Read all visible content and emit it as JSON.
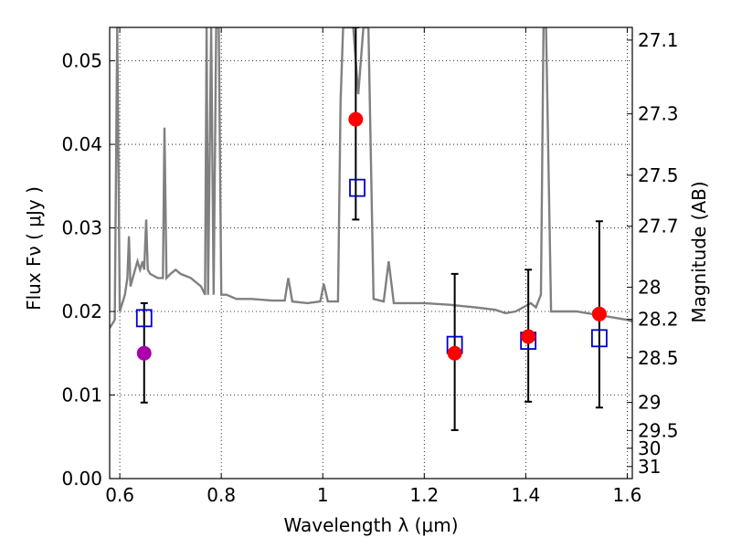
{
  "chart_data": {
    "type": "scatter",
    "xlabel": "Wavelength  λ (μm)",
    "ylabel": "Flux  Fν  ( μJy )",
    "ylabel_right": "Magnitude (AB)",
    "xlim": [
      0.58,
      1.61
    ],
    "ylim": [
      0.0,
      0.054
    ],
    "grid": true,
    "x_ticks": [
      0.6,
      0.8,
      1.0,
      1.2,
      1.4,
      1.6
    ],
    "x_tick_labels": [
      "0.6",
      "0.8",
      "1",
      "1.2",
      "1.4",
      "1.6"
    ],
    "y_ticks": [
      0.0,
      0.01,
      0.02,
      0.03,
      0.04,
      0.05
    ],
    "y_tick_labels": [
      "0.00",
      "0.01",
      "0.02",
      "0.03",
      "0.04",
      "0.05"
    ],
    "right_tick_labels": [
      "27.1",
      "27.3",
      "27.5",
      "27.7",
      "28",
      "28.2",
      "28.5",
      "29",
      "29.5",
      "30",
      "31"
    ],
    "colors": {
      "spectrum": "#808080",
      "observed": "#ff0000",
      "observed_upper": "#aa00aa",
      "model": "#0000cc",
      "errorbar": "#000000"
    },
    "spectrum": [
      [
        0.58,
        0.018
      ],
      [
        0.59,
        0.019
      ],
      [
        0.595,
        0.054
      ],
      [
        0.6,
        0.02
      ],
      [
        0.61,
        0.022
      ],
      [
        0.615,
        0.024
      ],
      [
        0.618,
        0.029
      ],
      [
        0.621,
        0.023
      ],
      [
        0.63,
        0.025
      ],
      [
        0.635,
        0.026
      ],
      [
        0.64,
        0.025
      ],
      [
        0.645,
        0.026
      ],
      [
        0.648,
        0.025
      ],
      [
        0.652,
        0.031
      ],
      [
        0.655,
        0.025
      ],
      [
        0.66,
        0.0245
      ],
      [
        0.675,
        0.024
      ],
      [
        0.685,
        0.024
      ],
      [
        0.688,
        0.042
      ],
      [
        0.692,
        0.024
      ],
      [
        0.7,
        0.0245
      ],
      [
        0.71,
        0.025
      ],
      [
        0.72,
        0.0245
      ],
      [
        0.74,
        0.024
      ],
      [
        0.76,
        0.023
      ],
      [
        0.768,
        0.022
      ],
      [
        0.771,
        0.054
      ],
      [
        0.774,
        0.022
      ],
      [
        0.78,
        0.054
      ],
      [
        0.785,
        0.022
      ],
      [
        0.79,
        0.054
      ],
      [
        0.795,
        0.054
      ],
      [
        0.8,
        0.022
      ],
      [
        0.81,
        0.022
      ],
      [
        0.83,
        0.0215
      ],
      [
        0.86,
        0.0215
      ],
      [
        0.9,
        0.0213
      ],
      [
        0.925,
        0.0213
      ],
      [
        0.932,
        0.024
      ],
      [
        0.94,
        0.0212
      ],
      [
        0.97,
        0.021
      ],
      [
        0.995,
        0.0212
      ],
      [
        1.002,
        0.0233
      ],
      [
        1.01,
        0.0212
      ],
      [
        1.03,
        0.0212
      ],
      [
        1.035,
        0.045
      ],
      [
        1.04,
        0.054
      ],
      [
        1.06,
        0.054
      ],
      [
        1.07,
        0.046
      ],
      [
        1.08,
        0.054
      ],
      [
        1.09,
        0.054
      ],
      [
        1.1,
        0.0215
      ],
      [
        1.12,
        0.0212
      ],
      [
        1.13,
        0.026
      ],
      [
        1.14,
        0.021
      ],
      [
        1.17,
        0.021
      ],
      [
        1.2,
        0.021
      ],
      [
        1.25,
        0.0208
      ],
      [
        1.3,
        0.0205
      ],
      [
        1.34,
        0.0202
      ],
      [
        1.36,
        0.0198
      ],
      [
        1.38,
        0.02
      ],
      [
        1.41,
        0.021
      ],
      [
        1.42,
        0.0205
      ],
      [
        1.43,
        0.022
      ],
      [
        1.435,
        0.054
      ],
      [
        1.44,
        0.054
      ],
      [
        1.45,
        0.02
      ],
      [
        1.5,
        0.02
      ],
      [
        1.55,
        0.0195
      ],
      [
        1.6,
        0.019
      ],
      [
        1.61,
        0.0188
      ]
    ],
    "series": [
      {
        "marker": "circle",
        "points": [
          {
            "x": 1.065,
            "y": 0.043,
            "err_low": 0.031,
            "err_high": 0.054
          },
          {
            "x": 1.26,
            "y": 0.015,
            "err_low": 0.0058,
            "err_high": 0.0245
          },
          {
            "x": 1.405,
            "y": 0.017,
            "err_low": 0.0092,
            "err_high": 0.025
          },
          {
            "x": 1.545,
            "y": 0.0197,
            "err_low": 0.0085,
            "err_high": 0.0308
          }
        ]
      },
      {
        "marker": "circle",
        "points": [
          {
            "x": 0.648,
            "y": 0.015,
            "err_low": 0.0091,
            "err_high": 0.021
          }
        ]
      },
      {
        "marker": "open-square",
        "points": [
          {
            "x": 0.648,
            "y": 0.0192
          },
          {
            "x": 1.068,
            "y": 0.0348
          },
          {
            "x": 1.26,
            "y": 0.016
          },
          {
            "x": 1.405,
            "y": 0.0165
          },
          {
            "x": 1.545,
            "y": 0.0168
          }
        ]
      }
    ]
  }
}
